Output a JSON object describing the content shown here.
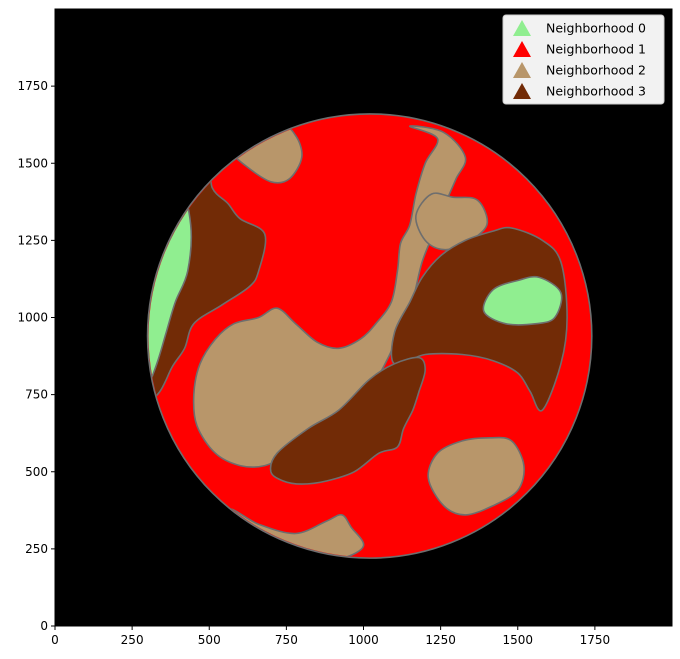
{
  "chart_data": {
    "type": "map",
    "title": "",
    "xlabel": "",
    "ylabel": "",
    "xlim": [
      0,
      2000
    ],
    "ylim": [
      0,
      2000
    ],
    "xticks": [
      0,
      250,
      500,
      750,
      1000,
      1250,
      1500,
      1750
    ],
    "yticks": [
      0,
      250,
      500,
      750,
      1000,
      1250,
      1500,
      1750
    ],
    "background_color": "#000000",
    "boundary_color": "#6e6e6e",
    "legend_position": "top-right",
    "legend": [
      {
        "label": "Neighborhood 0",
        "color": "#90ee90",
        "marker": "triangle"
      },
      {
        "label": "Neighborhood 1",
        "color": "#ff0000",
        "marker": "triangle"
      },
      {
        "label": "Neighborhood 2",
        "color": "#b8966a",
        "marker": "triangle"
      },
      {
        "label": "Neighborhood 3",
        "color": "#722b06",
        "marker": "triangle"
      }
    ],
    "tissue": {
      "center": [
        1020,
        940
      ],
      "radius": 720,
      "color": "#ff0000"
    },
    "regions": [
      {
        "neighborhood": 3,
        "name": "left-brown-band",
        "points": [
          [
            385,
            1440
          ],
          [
            490,
            1520
          ],
          [
            510,
            1420
          ],
          [
            560,
            1370
          ],
          [
            600,
            1320
          ],
          [
            680,
            1270
          ],
          [
            660,
            1150
          ],
          [
            630,
            1100
          ],
          [
            540,
            1040
          ],
          [
            450,
            980
          ],
          [
            420,
            900
          ],
          [
            380,
            840
          ],
          [
            340,
            760
          ],
          [
            280,
            700
          ],
          [
            230,
            660
          ],
          [
            270,
            720
          ],
          [
            330,
            850
          ],
          [
            360,
            1000
          ],
          [
            370,
            1200
          ],
          [
            380,
            1380
          ]
        ]
      },
      {
        "neighborhood": 0,
        "name": "left-green-lobe",
        "points": [
          [
            400,
            1450
          ],
          [
            440,
            1300
          ],
          [
            430,
            1150
          ],
          [
            390,
            1050
          ],
          [
            360,
            950
          ],
          [
            330,
            850
          ],
          [
            290,
            750
          ],
          [
            240,
            680
          ],
          [
            220,
            760
          ],
          [
            205,
            900
          ],
          [
            200,
            1050
          ],
          [
            215,
            1180
          ],
          [
            260,
            1330
          ],
          [
            330,
            1420
          ]
        ]
      },
      {
        "neighborhood": 2,
        "name": "top-left-tan-blob",
        "points": [
          [
            590,
            1580
          ],
          [
            730,
            1620
          ],
          [
            780,
            1590
          ],
          [
            800,
            1520
          ],
          [
            760,
            1450
          ],
          [
            700,
            1440
          ],
          [
            620,
            1490
          ],
          [
            570,
            1540
          ]
        ]
      },
      {
        "neighborhood": 2,
        "name": "central-tan-arc",
        "points": [
          [
            1150,
            1620
          ],
          [
            1240,
            1580
          ],
          [
            1200,
            1500
          ],
          [
            1170,
            1400
          ],
          [
            1150,
            1300
          ],
          [
            1120,
            1240
          ],
          [
            1110,
            1150
          ],
          [
            1090,
            1050
          ],
          [
            1040,
            980
          ],
          [
            990,
            930
          ],
          [
            920,
            900
          ],
          [
            850,
            920
          ],
          [
            780,
            980
          ],
          [
            720,
            1030
          ],
          [
            660,
            1000
          ],
          [
            580,
            980
          ],
          [
            520,
            930
          ],
          [
            470,
            850
          ],
          [
            450,
            750
          ],
          [
            460,
            650
          ],
          [
            520,
            560
          ],
          [
            600,
            520
          ],
          [
            680,
            520
          ],
          [
            760,
            560
          ],
          [
            840,
            620
          ],
          [
            920,
            660
          ],
          [
            980,
            720
          ],
          [
            1030,
            780
          ],
          [
            1080,
            870
          ],
          [
            1120,
            960
          ],
          [
            1160,
            1060
          ],
          [
            1190,
            1180
          ],
          [
            1230,
            1280
          ],
          [
            1270,
            1380
          ],
          [
            1300,
            1450
          ],
          [
            1330,
            1520
          ],
          [
            1260,
            1600
          ]
        ]
      },
      {
        "neighborhood": 2,
        "name": "upper-right-tan-blob",
        "points": [
          [
            1220,
            1400
          ],
          [
            1290,
            1390
          ],
          [
            1370,
            1380
          ],
          [
            1400,
            1300
          ],
          [
            1330,
            1240
          ],
          [
            1260,
            1220
          ],
          [
            1200,
            1250
          ],
          [
            1170,
            1330
          ]
        ]
      },
      {
        "neighborhood": 3,
        "name": "right-brown-area",
        "points": [
          [
            1480,
            1290
          ],
          [
            1580,
            1250
          ],
          [
            1640,
            1180
          ],
          [
            1660,
            1000
          ],
          [
            1640,
            850
          ],
          [
            1580,
            700
          ],
          [
            1540,
            760
          ],
          [
            1500,
            820
          ],
          [
            1420,
            860
          ],
          [
            1320,
            880
          ],
          [
            1200,
            880
          ],
          [
            1100,
            850
          ],
          [
            1100,
            950
          ],
          [
            1150,
            1050
          ],
          [
            1190,
            1130
          ],
          [
            1250,
            1200
          ],
          [
            1330,
            1250
          ],
          [
            1420,
            1280
          ]
        ]
      },
      {
        "neighborhood": 0,
        "name": "right-green-lobe",
        "points": [
          [
            1500,
            1120
          ],
          [
            1570,
            1130
          ],
          [
            1640,
            1080
          ],
          [
            1620,
            1000
          ],
          [
            1560,
            980
          ],
          [
            1460,
            980
          ],
          [
            1390,
            1020
          ],
          [
            1420,
            1090
          ]
        ]
      },
      {
        "neighborhood": 3,
        "name": "lower-brown-band",
        "points": [
          [
            720,
            560
          ],
          [
            820,
            640
          ],
          [
            920,
            700
          ],
          [
            1020,
            800
          ],
          [
            1100,
            850
          ],
          [
            1180,
            870
          ],
          [
            1200,
            830
          ],
          [
            1180,
            760
          ],
          [
            1160,
            700
          ],
          [
            1130,
            640
          ],
          [
            1110,
            580
          ],
          [
            1050,
            560
          ],
          [
            970,
            500
          ],
          [
            880,
            470
          ],
          [
            800,
            460
          ],
          [
            740,
            470
          ],
          [
            700,
            500
          ]
        ]
      },
      {
        "neighborhood": 2,
        "name": "lower-right-tan-blob",
        "points": [
          [
            1480,
            600
          ],
          [
            1520,
            520
          ],
          [
            1500,
            440
          ],
          [
            1420,
            390
          ],
          [
            1330,
            360
          ],
          [
            1260,
            390
          ],
          [
            1210,
            480
          ],
          [
            1240,
            560
          ],
          [
            1320,
            600
          ],
          [
            1410,
            610
          ]
        ]
      },
      {
        "neighborhood": 2,
        "name": "bottom-tan-arc",
        "points": [
          [
            560,
            380
          ],
          [
            660,
            330
          ],
          [
            780,
            300
          ],
          [
            880,
            340
          ],
          [
            930,
            360
          ],
          [
            960,
            320
          ],
          [
            1000,
            260
          ],
          [
            930,
            220
          ],
          [
            820,
            220
          ],
          [
            720,
            240
          ],
          [
            620,
            260
          ],
          [
            540,
            300
          ]
        ]
      }
    ]
  }
}
